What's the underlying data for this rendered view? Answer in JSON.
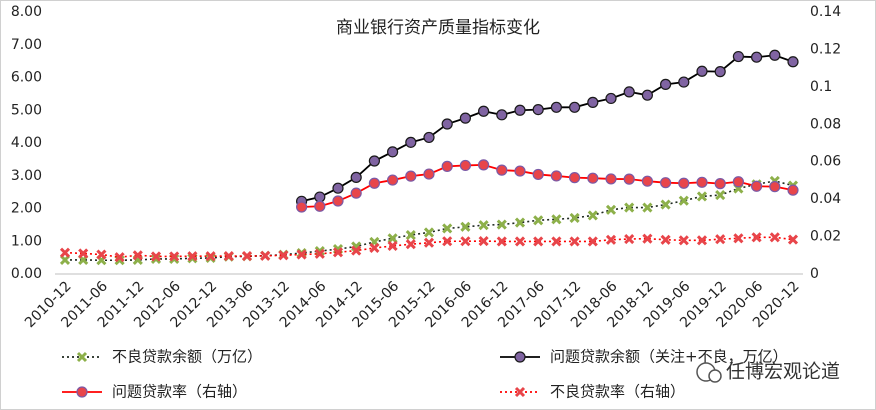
{
  "chart_data": {
    "type": "line",
    "title": "商业银行资产质量指标变化",
    "watermark": "任博宏观论道",
    "categories": [
      "2010-12",
      null,
      "2011-06",
      null,
      "2011-12",
      null,
      "2012-06",
      null,
      "2012-12",
      null,
      "2013-06",
      null,
      "2013-12",
      null,
      "2014-06",
      null,
      "2014-12",
      null,
      "2015-06",
      null,
      "2015-12",
      null,
      "2016-06",
      null,
      "2016-12",
      null,
      "2017-06",
      null,
      "2017-12",
      null,
      "2018-06",
      null,
      "2018-12",
      null,
      "2019-06",
      null,
      "2019-12",
      null,
      "2020-06",
      null,
      "2020-12"
    ],
    "ylim": [
      0,
      8
    ],
    "yticks": [
      {
        "value": 0,
        "label": "0.00"
      },
      {
        "value": 1,
        "label": "1.00"
      },
      {
        "value": 2,
        "label": "2.00"
      },
      {
        "value": 3,
        "label": "3.00"
      },
      {
        "value": 4,
        "label": "4.00"
      },
      {
        "value": 5,
        "label": "5.00"
      },
      {
        "value": 6,
        "label": "6.00"
      },
      {
        "value": 7,
        "label": "7.00"
      },
      {
        "value": 8,
        "label": "8.00"
      }
    ],
    "y2lim": [
      0,
      0.14
    ],
    "y2ticks": [
      0,
      0.02,
      0.04,
      0.06,
      0.08,
      0.1,
      0.12,
      0.14
    ],
    "grid": false,
    "legend": "bottom",
    "series": [
      {
        "name": "不良贷款余额（万亿）",
        "color": "#1f2a1f",
        "marker_color": "#8db04a",
        "line_style": "dotted",
        "marker": "x",
        "values": [
          0.43,
          0.43,
          0.42,
          0.42,
          0.43,
          0.46,
          0.46,
          0.48,
          0.49,
          0.53,
          0.54,
          0.56,
          0.59,
          0.64,
          0.7,
          0.76,
          0.84,
          0.98,
          1.09,
          1.19,
          1.27,
          1.39,
          1.44,
          1.49,
          1.51,
          1.57,
          1.64,
          1.67,
          1.71,
          1.79,
          1.96,
          2.03,
          2.03,
          2.12,
          2.24,
          2.37,
          2.41,
          2.61,
          2.74,
          2.84,
          2.7
        ]
      },
      {
        "name": "问题贷款余额（关注+不良，万亿）",
        "color": "#000000",
        "marker_color": "#8064a2",
        "line_style": "solid",
        "marker": "circle",
        "values": [
          null,
          null,
          null,
          null,
          null,
          null,
          null,
          null,
          null,
          null,
          null,
          null,
          null,
          2.22,
          2.35,
          2.62,
          2.95,
          3.45,
          3.73,
          4.02,
          4.17,
          4.58,
          4.76,
          4.97,
          4.86,
          5.0,
          5.02,
          5.09,
          5.09,
          5.24,
          5.36,
          5.56,
          5.46,
          5.79,
          5.86,
          6.19,
          6.18,
          6.64,
          6.62,
          6.68,
          6.48
        ]
      },
      {
        "name": "问题贷款率（右轴）",
        "color": "#ff0000",
        "marker_color": "#e8454a",
        "line_style": "solid",
        "marker": "circle",
        "axis": "y2",
        "values": [
          null,
          null,
          null,
          null,
          null,
          null,
          null,
          null,
          null,
          null,
          null,
          null,
          null,
          0.0358,
          0.0362,
          0.039,
          0.0432,
          0.0485,
          0.0502,
          0.0523,
          0.0534,
          0.0575,
          0.058,
          0.0583,
          0.0555,
          0.055,
          0.0532,
          0.0524,
          0.0515,
          0.0512,
          0.0508,
          0.0507,
          0.0496,
          0.0488,
          0.0485,
          0.049,
          0.0483,
          0.0493,
          0.0469,
          0.0467,
          0.0448
        ]
      },
      {
        "name": "不良贷款率（右轴）",
        "color": "#ff0000",
        "marker_color": "#e8454a",
        "line_style": "dotted",
        "marker": "x",
        "axis": "y2",
        "values": [
          0.0114,
          0.011,
          0.0104,
          0.009,
          0.01,
          0.0094,
          0.0094,
          0.0095,
          0.0095,
          0.0096,
          0.0096,
          0.0097,
          0.01,
          0.0104,
          0.0108,
          0.0116,
          0.0125,
          0.0139,
          0.015,
          0.0159,
          0.0167,
          0.0175,
          0.0175,
          0.0176,
          0.0174,
          0.0174,
          0.0174,
          0.0174,
          0.0174,
          0.0174,
          0.0183,
          0.0187,
          0.0189,
          0.0183,
          0.018,
          0.018,
          0.0186,
          0.0191,
          0.0196,
          0.0196,
          0.0184
        ]
      }
    ]
  }
}
